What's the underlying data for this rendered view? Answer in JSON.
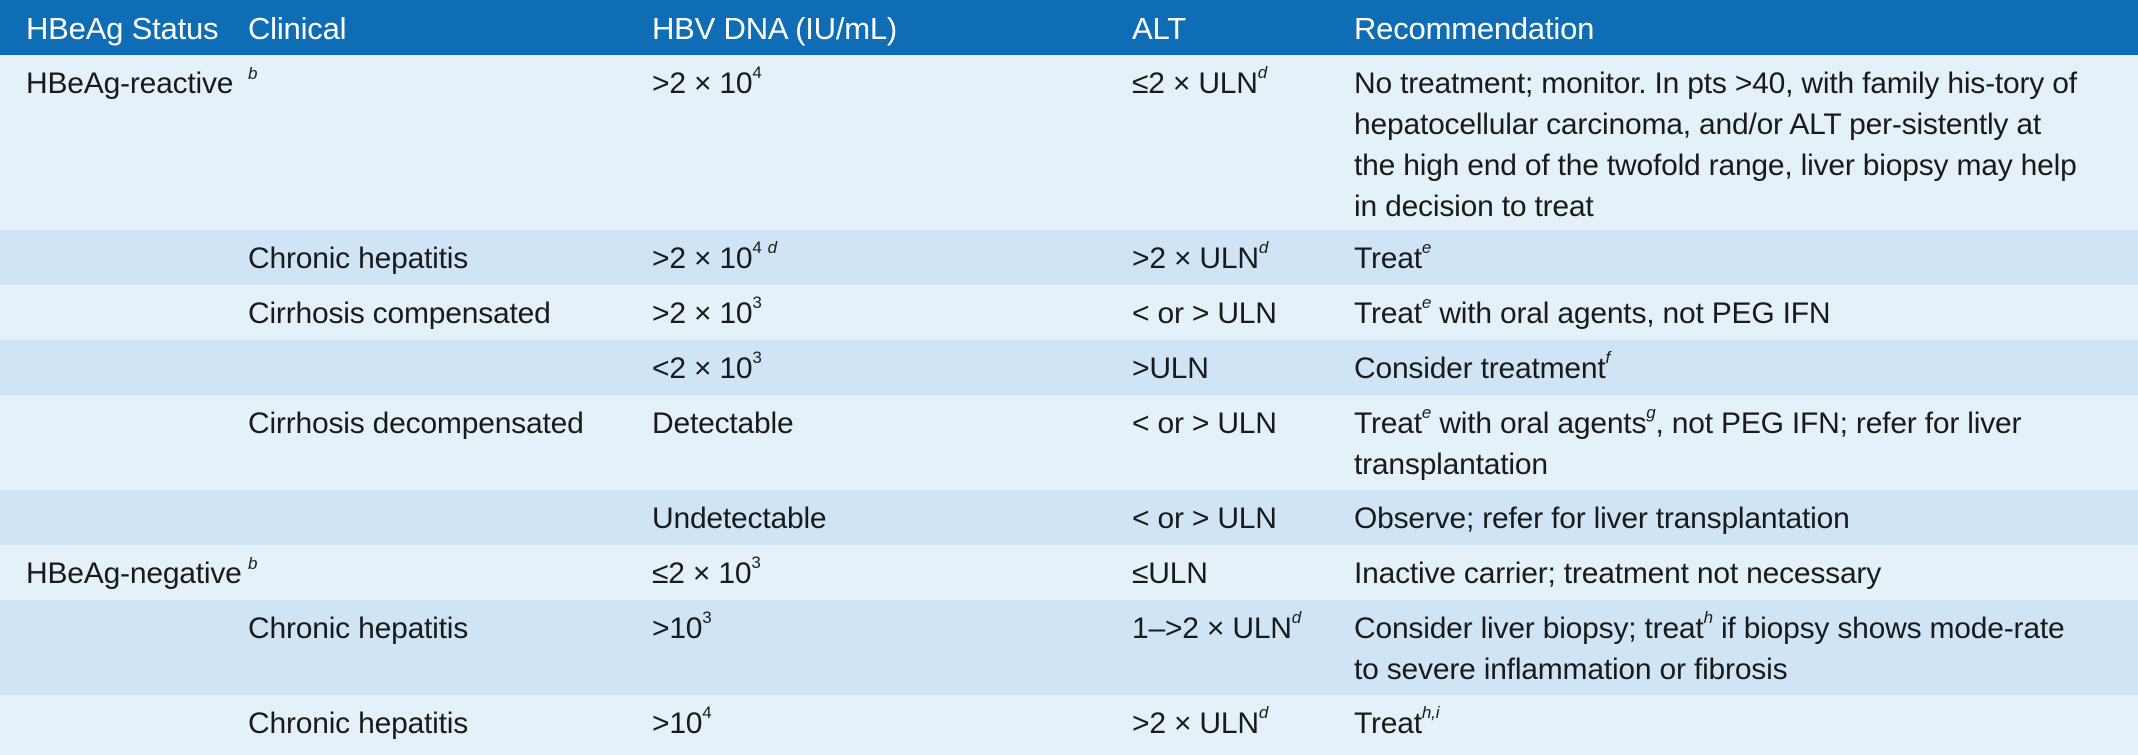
{
  "headers": {
    "status": "HBeAg Status",
    "clinical": "Clinical",
    "dna": "HBV DNA (IU/mL)",
    "alt": "ALT",
    "rec": "Recommendation"
  },
  "rows": [
    {
      "status": "HBeAg-reactive",
      "clinical_mark": "b",
      "dna": ">2 × 10",
      "dna_exp": "4",
      "alt": "≤2 × ULN",
      "alt_mark": "d",
      "rec": "No treatment; monitor. In pts >40, with family his-tory of hepatocellular carcinoma, and/or ALT per-sistently at the high end of the twofold range, liver biopsy may help in decision to treat"
    },
    {
      "clinical": "Chronic hepatitis",
      "dna": ">2 × 10",
      "dna_exp": "4",
      "dna_mark": "d",
      "alt": ">2 × ULN",
      "alt_mark": "d",
      "rec": "Treat",
      "rec_mark": "e"
    },
    {
      "clinical": "Cirrhosis compensated",
      "dna": ">2 × 10",
      "dna_exp": "3",
      "alt": "< or > ULN",
      "rec_a": "Treat",
      "rec_mark": "e",
      "rec_b": " with oral agents, not PEG IFN"
    },
    {
      "dna": "<2 × 10",
      "dna_exp": "3",
      "alt": ">ULN",
      "rec": "Consider treatment",
      "rec_mark": "f"
    },
    {
      "clinical": "Cirrhosis decompensated",
      "dna": "Detectable",
      "alt": "< or > ULN",
      "rec_a": "Treat",
      "rec_mark": "e",
      "rec_b": " with oral agents",
      "rec_mark2": "g",
      "rec_c": ", not PEG IFN; refer for liver transplantation"
    },
    {
      "dna": "Undetectable",
      "alt": "< or > ULN",
      "rec": "Observe; refer for liver transplantation"
    },
    {
      "status": "HBeAg-negative",
      "clinical_mark": "b",
      "dna": "≤2 × 10",
      "dna_exp": "3",
      "alt": "≤ULN",
      "rec": "Inactive carrier; treatment not necessary"
    },
    {
      "clinical": "Chronic hepatitis",
      "dna": ">10",
      "dna_exp": "3",
      "alt": "1–>2 × ULN",
      "alt_mark": "d",
      "rec_a": "Consider liver biopsy; treat",
      "rec_mark": "h",
      "rec_b": " if biopsy shows mode-rate to severe inflammation or fibrosis"
    },
    {
      "clinical": "Chronic hepatitis",
      "dna": ">10",
      "dna_exp": "4",
      "alt": ">2 × ULN",
      "alt_mark": "d",
      "rec": "Treat",
      "rec_mark": "h,i"
    }
  ]
}
